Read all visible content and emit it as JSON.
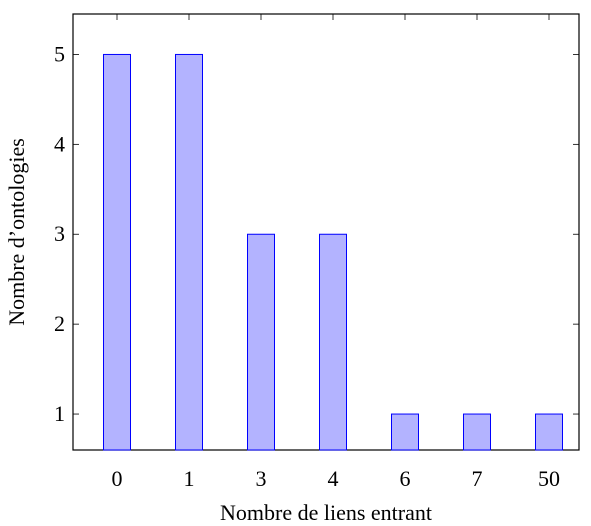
{
  "chart_data": {
    "type": "bar",
    "categories": [
      "0",
      "1",
      "3",
      "4",
      "6",
      "7",
      "50"
    ],
    "values": [
      5,
      5,
      3,
      3,
      1,
      1,
      1
    ],
    "title": "",
    "xlabel": "Nombre de liens entrant",
    "ylabel": "Nombre d’ontologies",
    "ylim": [
      0.6,
      5.45
    ],
    "yticks": [
      1,
      2,
      3,
      4,
      5
    ],
    "grid": false,
    "colors": {
      "bar_fill": "#b3b3ff",
      "bar_stroke": "#0000ff",
      "axis": "#000000"
    }
  }
}
